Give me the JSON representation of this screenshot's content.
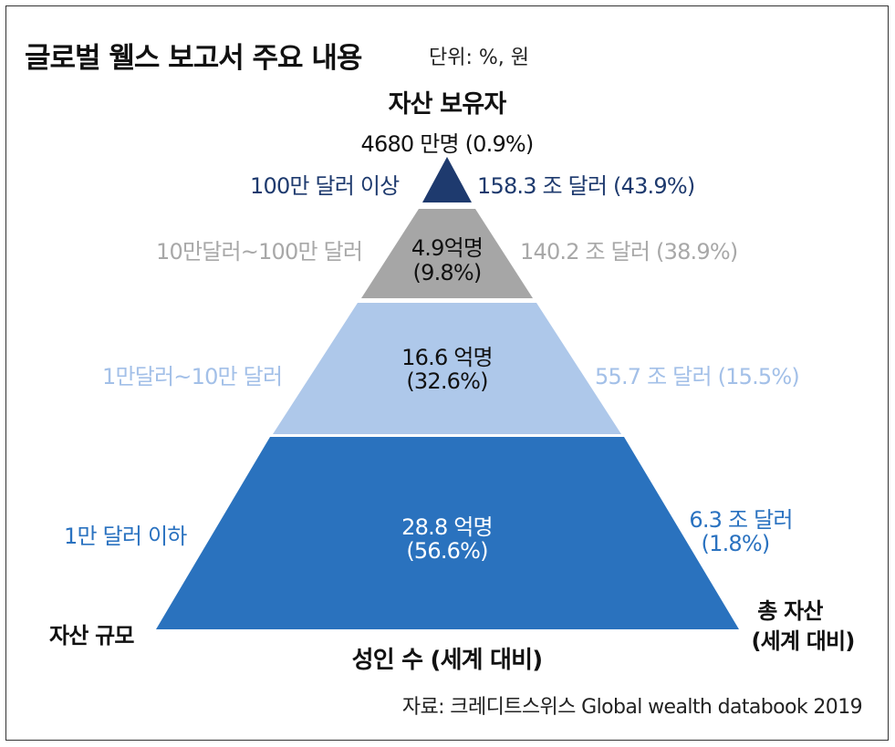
{
  "title": "글로벌 웰스 보고서 주요 내용",
  "unit": "단위: %, 원",
  "top": {
    "label": "자산 보유자",
    "value": "4680 만명 (0.9%)"
  },
  "tiers": [
    {
      "range": "100만 달러 이상",
      "adults": "",
      "assets": "158.3 조 달러 (43.9%)",
      "color": "#1e3a6e"
    },
    {
      "range": "10만달러~100만 달러",
      "adults_line1": "4.9억명",
      "adults_line2": "(9.8%)",
      "assets": "140.2 조 달러 (38.9%)",
      "color": "#a6a6a6"
    },
    {
      "range": "1만달러~10만 달러",
      "adults_line1": "16.6 억명",
      "adults_line2": "(32.6%)",
      "assets": "55.7 조 달러 (15.5%)",
      "color": "#aec8ea"
    },
    {
      "range": "1만 달러 이하",
      "adults_line1": "28.8 억명",
      "adults_line2": "(56.6%)",
      "assets_line1": "6.3 조 달러",
      "assets_line2": "(1.8%)",
      "color": "#2a72be"
    }
  ],
  "axis": {
    "left": "자산 규모",
    "bottom": "성인 수 (세계 대비)",
    "right_line1": "총 자산",
    "right_line2": "(세계 대비)"
  },
  "source": "자료: 크레디트스위스 Global wealth databook 2019"
}
